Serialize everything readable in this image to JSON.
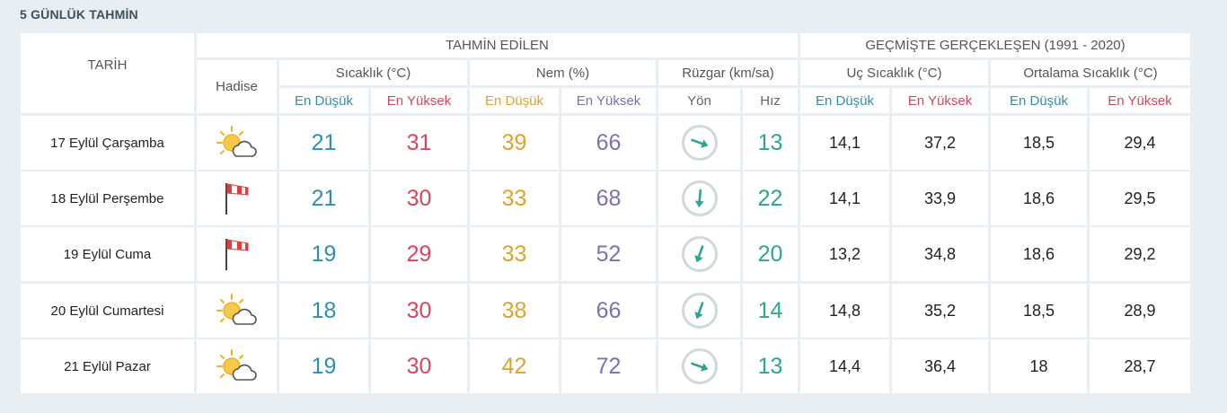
{
  "title": "5 GÜNLÜK TAHMİN",
  "headers": {
    "tarih": "TARİH",
    "hadise": "Hadise",
    "tahmin": "TAHMİN EDİLEN",
    "gecmis": "GEÇMİŞTE GERÇEKLEŞEN (1991 - 2020)",
    "sicaklik": "Sıcaklık (°C)",
    "nem": "Nem (%)",
    "ruzgar": "Rüzgar (km/sa)",
    "uc_sicaklik": "Uç Sıcaklık (°C)",
    "ort_sicaklik": "Ortalama Sıcaklık (°C)",
    "en_dusuk": "En Düşük",
    "en_yuksek": "En Yüksek",
    "yon": "Yön",
    "hiz": "Hız"
  },
  "colors": {
    "low": "#2e8fb0",
    "high": "#d9455f",
    "humidity_low": "#e0a22a",
    "humidity_high": "#7f6fb0",
    "wind": "#2ba693"
  },
  "rows": [
    {
      "date": "17 Eylül Çarşamba",
      "icon": "partly-cloudy-icon",
      "temp_low": "21",
      "temp_high": "31",
      "hum_low": "39",
      "hum_high": "66",
      "wind_dir_deg": 110,
      "wind_speed": "13",
      "uc_low": "14,1",
      "uc_high": "37,2",
      "ort_low": "18,5",
      "ort_high": "29,4"
    },
    {
      "date": "18 Eylül Perşembe",
      "icon": "windsock-icon",
      "temp_low": "21",
      "temp_high": "30",
      "hum_low": "33",
      "hum_high": "68",
      "wind_dir_deg": 185,
      "wind_speed": "22",
      "uc_low": "14,1",
      "uc_high": "33,9",
      "ort_low": "18,6",
      "ort_high": "29,5"
    },
    {
      "date": "19 Eylül Cuma",
      "icon": "windsock-icon",
      "temp_low": "19",
      "temp_high": "29",
      "hum_low": "33",
      "hum_high": "52",
      "wind_dir_deg": 200,
      "wind_speed": "20",
      "uc_low": "13,2",
      "uc_high": "34,8",
      "ort_low": "18,6",
      "ort_high": "29,2"
    },
    {
      "date": "20 Eylül Cumartesi",
      "icon": "partly-cloudy-icon",
      "temp_low": "18",
      "temp_high": "30",
      "hum_low": "38",
      "hum_high": "66",
      "wind_dir_deg": 200,
      "wind_speed": "14",
      "uc_low": "14,8",
      "uc_high": "35,2",
      "ort_low": "18,5",
      "ort_high": "28,9"
    },
    {
      "date": "21 Eylül Pazar",
      "icon": "partly-cloudy-icon",
      "temp_low": "19",
      "temp_high": "30",
      "hum_low": "42",
      "hum_high": "72",
      "wind_dir_deg": 110,
      "wind_speed": "13",
      "uc_low": "14,4",
      "uc_high": "36,4",
      "ort_low": "18",
      "ort_high": "28,7"
    }
  ]
}
